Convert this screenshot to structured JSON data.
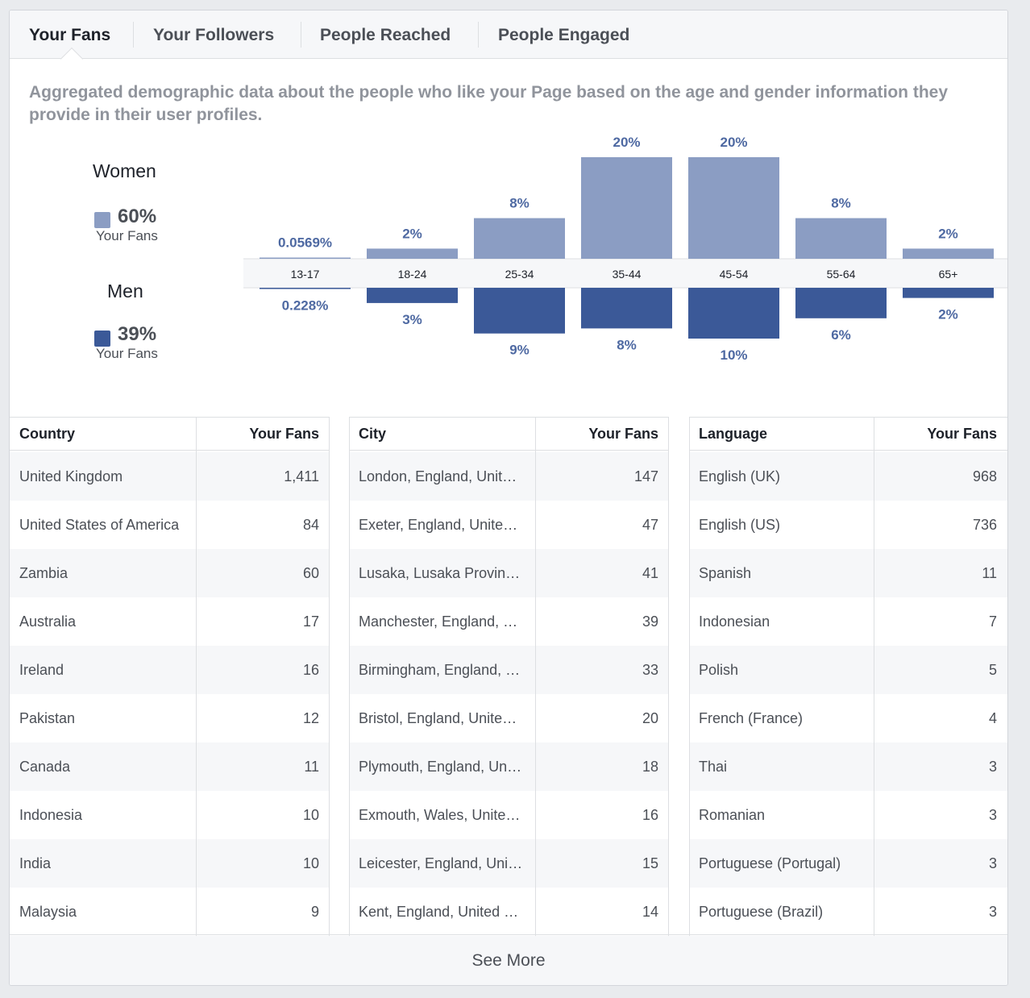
{
  "tabs": [
    {
      "label": "Your Fans",
      "active": true
    },
    {
      "label": "Your Followers",
      "active": false
    },
    {
      "label": "People Reached",
      "active": false
    },
    {
      "label": "People Engaged",
      "active": false
    }
  ],
  "description": "Aggregated demographic data about the people who like your Page based on the age and gender information they provide in their user profiles.",
  "legend": {
    "women": {
      "title": "Women",
      "pct": "60%",
      "sub": "Your Fans",
      "color": "#8b9dc3"
    },
    "men": {
      "title": "Men",
      "pct": "39%",
      "sub": "Your Fans",
      "color": "#3b5998"
    }
  },
  "chart_data": {
    "type": "bar",
    "categories": [
      "13-17",
      "18-24",
      "25-34",
      "35-44",
      "45-54",
      "55-64",
      "65+"
    ],
    "series": [
      {
        "name": "Women",
        "values": [
          0.0569,
          2,
          8,
          20,
          20,
          8,
          2
        ],
        "labels": [
          "0.0569%",
          "2%",
          "8%",
          "20%",
          "20%",
          "8%",
          "2%"
        ],
        "color": "#8b9dc3"
      },
      {
        "name": "Men",
        "values": [
          0.228,
          3,
          9,
          8,
          10,
          6,
          2
        ],
        "labels": [
          "0.228%",
          "3%",
          "9%",
          "8%",
          "10%",
          "6%",
          "2%"
        ],
        "color": "#3b5998"
      }
    ]
  },
  "tables": [
    {
      "header": [
        "Country",
        "Your Fans"
      ],
      "rows": [
        [
          "United Kingdom",
          "1,411"
        ],
        [
          "United States of America",
          "84"
        ],
        [
          "Zambia",
          "60"
        ],
        [
          "Australia",
          "17"
        ],
        [
          "Ireland",
          "16"
        ],
        [
          "Pakistan",
          "12"
        ],
        [
          "Canada",
          "11"
        ],
        [
          "Indonesia",
          "10"
        ],
        [
          "India",
          "10"
        ],
        [
          "Malaysia",
          "9"
        ]
      ]
    },
    {
      "header": [
        "City",
        "Your Fans"
      ],
      "rows": [
        [
          "London, England, Unit…",
          "147"
        ],
        [
          "Exeter, England, Unite…",
          "47"
        ],
        [
          "Lusaka, Lusaka Provin…",
          "41"
        ],
        [
          "Manchester, England, …",
          "39"
        ],
        [
          "Birmingham, England, …",
          "33"
        ],
        [
          "Bristol, England, Unite…",
          "20"
        ],
        [
          "Plymouth, England, Un…",
          "18"
        ],
        [
          "Exmouth, Wales, Unite…",
          "16"
        ],
        [
          "Leicester, England, Uni…",
          "15"
        ],
        [
          "Kent, England, United …",
          "14"
        ]
      ]
    },
    {
      "header": [
        "Language",
        "Your Fans"
      ],
      "rows": [
        [
          "English (UK)",
          "968"
        ],
        [
          "English (US)",
          "736"
        ],
        [
          "Spanish",
          "11"
        ],
        [
          "Indonesian",
          "7"
        ],
        [
          "Polish",
          "5"
        ],
        [
          "French (France)",
          "4"
        ],
        [
          "Thai",
          "3"
        ],
        [
          "Romanian",
          "3"
        ],
        [
          "Portuguese (Portugal)",
          "3"
        ],
        [
          "Portuguese (Brazil)",
          "3"
        ]
      ]
    }
  ],
  "see_more": "See More"
}
